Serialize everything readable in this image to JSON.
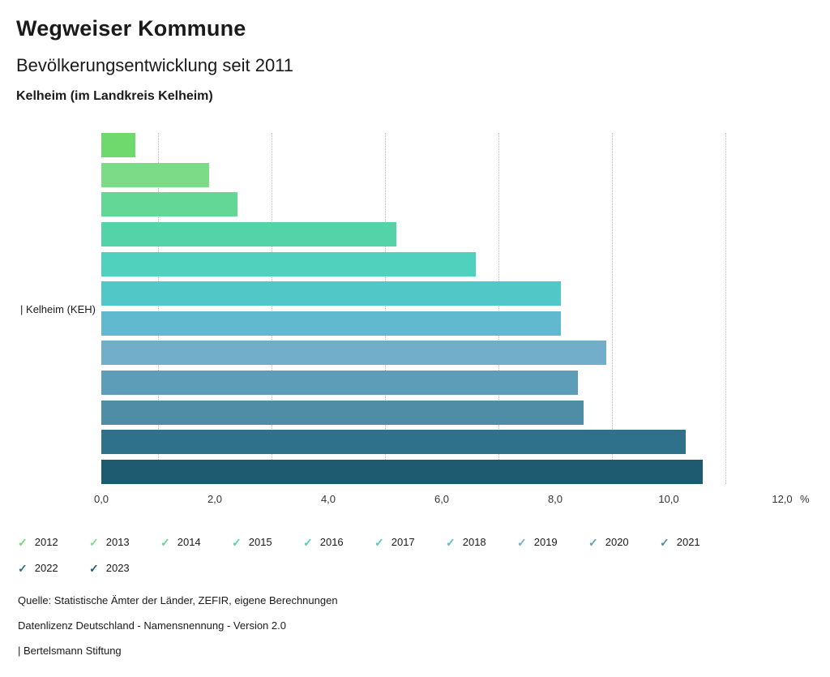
{
  "header": {
    "title": "Wegweiser Kommune",
    "subtitle": "Bevölkerungsentwicklung seit 2011",
    "location": "Kelheim (im Landkreis Kelheim)"
  },
  "chart_data": {
    "type": "bar",
    "orientation": "horizontal",
    "group_label": "| Kelheim (KEH)",
    "title": "Bevölkerungsentwicklung seit 2011",
    "xlabel": "%",
    "ylabel": "Kelheim (KEH)",
    "xlim": [
      0,
      12
    ],
    "grid": "dotted-vertical",
    "gridlines_at": [
      1,
      3,
      5,
      7,
      9,
      11
    ],
    "legend_position": "bottom",
    "series": [
      {
        "name": "2012",
        "value": 0.6,
        "color": "#70D96E"
      },
      {
        "name": "2013",
        "value": 1.9,
        "color": "#7CDB86"
      },
      {
        "name": "2014",
        "value": 2.4,
        "color": "#63D795"
      },
      {
        "name": "2015",
        "value": 5.2,
        "color": "#54D3A8"
      },
      {
        "name": "2016",
        "value": 6.6,
        "color": "#4FD1BD"
      },
      {
        "name": "2017",
        "value": 8.1,
        "color": "#52C7C7"
      },
      {
        "name": "2018",
        "value": 8.1,
        "color": "#60B9CE"
      },
      {
        "name": "2019",
        "value": 8.9,
        "color": "#72AECA"
      },
      {
        "name": "2020",
        "value": 8.4,
        "color": "#5E9DB8"
      },
      {
        "name": "2021",
        "value": 8.5,
        "color": "#4F8CA6"
      },
      {
        "name": "2022",
        "value": 10.3,
        "color": "#2F708A"
      },
      {
        "name": "2023",
        "value": 10.6,
        "color": "#1E5B70"
      }
    ],
    "xticks": [
      {
        "value": 0,
        "label": "0,0"
      },
      {
        "value": 2,
        "label": "2,0"
      },
      {
        "value": 4,
        "label": "4,0"
      },
      {
        "value": 6,
        "label": "6,0"
      },
      {
        "value": 8,
        "label": "8,0"
      },
      {
        "value": 10,
        "label": "10,0"
      },
      {
        "value": 12,
        "label": "12,0"
      }
    ],
    "x_unit": "%",
    "legend_check_glyph": "✓"
  },
  "footer": {
    "source": "Quelle: Statistische Ämter der Länder, ZEFIR, eigene Berechnungen",
    "license": "Datenlizenz Deutschland - Namensnennung - Version 2.0",
    "brand": "| Bertelsmann Stiftung"
  }
}
